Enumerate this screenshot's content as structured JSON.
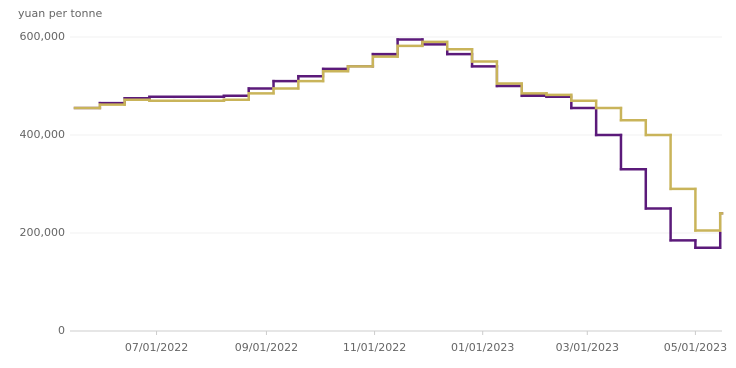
{
  "chart_data": {
    "type": "line",
    "step": true,
    "y_label": "yuan per tonne",
    "x": [
      "05/16/2022",
      "05/30/2022",
      "06/13/2022",
      "06/27/2022",
      "07/11/2022",
      "07/25/2022",
      "08/08/2022",
      "08/22/2022",
      "09/05/2022",
      "09/19/2022",
      "10/03/2022",
      "10/17/2022",
      "10/31/2022",
      "11/14/2022",
      "11/28/2022",
      "12/12/2022",
      "12/26/2022",
      "01/09/2023",
      "01/23/2023",
      "02/06/2023",
      "02/20/2023",
      "03/06/2023",
      "03/20/2023",
      "04/03/2023",
      "04/17/2023",
      "05/01/2023",
      "05/15/2023"
    ],
    "series": [
      {
        "color": "#5b1a7a",
        "values": [
          455000,
          465000,
          475000,
          478000,
          478000,
          478000,
          480000,
          495000,
          510000,
          520000,
          535000,
          540000,
          565000,
          595000,
          585000,
          565000,
          540000,
          500000,
          480000,
          478000,
          455000,
          400000,
          330000,
          250000,
          185000,
          170000,
          240000
        ]
      },
      {
        "color": "#c9b45a",
        "values": [
          455000,
          462000,
          472000,
          470000,
          470000,
          470000,
          472000,
          485000,
          495000,
          510000,
          530000,
          540000,
          560000,
          582000,
          590000,
          575000,
          550000,
          505000,
          485000,
          482000,
          470000,
          455000,
          430000,
          400000,
          290000,
          205000,
          240000
        ]
      }
    ],
    "xlim": [
      "05/16/2022",
      "05/16/2023"
    ],
    "xticks": [
      "07/01/2022",
      "09/01/2022",
      "11/01/2022",
      "01/01/2023",
      "03/01/2023",
      "05/01/2023"
    ],
    "ylim": [
      0,
      600000
    ],
    "yticks": [
      {
        "value": 0,
        "label": "0"
      },
      {
        "value": 200000,
        "label": "200,000"
      },
      {
        "value": 400000,
        "label": "400,000"
      },
      {
        "value": 600000,
        "label": "600,000"
      }
    ],
    "grid": true
  }
}
